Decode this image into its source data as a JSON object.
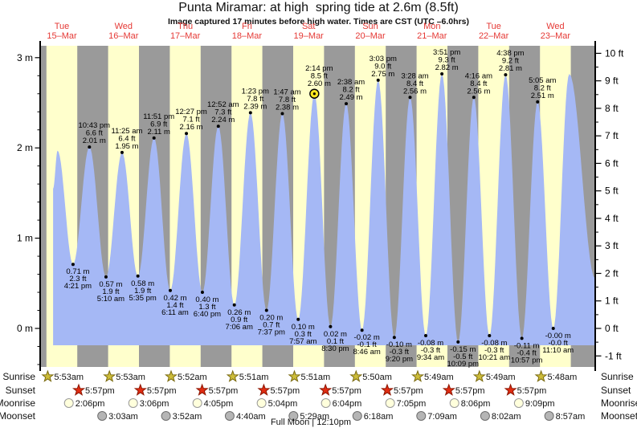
{
  "title": "Punta Miramar: at high  spring tide at 2.6m (8.5ft)",
  "subtitle": "Image captured 17 minutes before high water. Times are CST (UTC –6.0hrs)",
  "colors": {
    "day_band": "#ffffcc",
    "night_band": "#9a9a9a",
    "tide_fill": "#a5b8f5",
    "date_label": "#e53935",
    "axis_text": "#111111",
    "event_text": "#000000",
    "marker_fill": "#ffe920",
    "sunrise_fill": "#cdbd3a",
    "sunrise_stroke": "#7a6a10",
    "sunset_fill": "#e22c12",
    "sunset_stroke": "#8c1500",
    "moonrise_fill": "#ffffdc",
    "moonrise_stroke": "#9a9a9a",
    "moonset_fill": "#b5b5b5",
    "moonset_stroke": "#6e6e6e"
  },
  "chart_data": {
    "type": "area",
    "title": "Punta Miramar: at high  spring tide at 2.6m (8.5ft)",
    "subtitle": "Image captured 17 minutes before high water. Times are CST (UTC –6.0hrs)",
    "y_axis_left": {
      "unit": "m",
      "major_ticks": [
        0,
        1,
        2,
        3
      ],
      "minor_step": 0.2,
      "range_m": [
        -0.45,
        3.15
      ]
    },
    "y_axis_right": {
      "unit": "ft",
      "major_ticks": [
        -1,
        0,
        1,
        2,
        3,
        4,
        5,
        6,
        7,
        8,
        9,
        10
      ],
      "minor_step": 0.5
    },
    "days": [
      {
        "weekday": "Tue",
        "date": "15–Mar"
      },
      {
        "weekday": "Wed",
        "date": "16–Mar"
      },
      {
        "weekday": "Thu",
        "date": "17–Mar"
      },
      {
        "weekday": "Fri",
        "date": "18–Mar"
      },
      {
        "weekday": "Sat",
        "date": "19–Mar"
      },
      {
        "weekday": "Sun",
        "date": "20–Mar"
      },
      {
        "weekday": "Mon",
        "date": "21–Mar"
      },
      {
        "weekday": "Tue",
        "date": "22–Mar"
      },
      {
        "weekday": "Wed",
        "date": "23–Mar"
      }
    ],
    "tide_events": [
      {
        "kind": "low",
        "day": 0,
        "hour": 16.35,
        "time": "4:21 pm",
        "m": 0.71,
        "ft": 2.3,
        "m_label": "0.71 m",
        "ft_label": "2.3 ft"
      },
      {
        "kind": "high",
        "day": 0,
        "hour": 22.72,
        "time": "10:43 pm",
        "m": 2.01,
        "ft": 6.6,
        "m_label": "2.01 m",
        "ft_label": "6.6 ft"
      },
      {
        "kind": "low",
        "day": 1,
        "hour": 5.17,
        "time": "5:10 am",
        "m": 0.57,
        "ft": 1.9,
        "m_label": "0.57 m",
        "ft_label": "1.9 ft"
      },
      {
        "kind": "high",
        "day": 1,
        "hour": 11.42,
        "time": "11:25 am",
        "m": 1.95,
        "ft": 6.4,
        "m_label": "1.95 m",
        "ft_label": "6.4 ft"
      },
      {
        "kind": "low",
        "day": 1,
        "hour": 17.58,
        "time": "5:35 pm",
        "m": 0.58,
        "ft": 1.9,
        "m_label": "0.58 m",
        "ft_label": "1.9 ft"
      },
      {
        "kind": "high",
        "day": 1,
        "hour": 23.85,
        "time": "11:51 pm",
        "m": 2.11,
        "ft": 6.9,
        "m_label": "2.11 m",
        "ft_label": "6.9 ft"
      },
      {
        "kind": "low",
        "day": 2,
        "hour": 6.18,
        "time": "6:11 am",
        "m": 0.42,
        "ft": 1.4,
        "m_label": "0.42 m",
        "ft_label": "1.4 ft"
      },
      {
        "kind": "high",
        "day": 2,
        "hour": 12.45,
        "time": "12:27 pm",
        "m": 2.16,
        "ft": 7.1,
        "m_label": "2.16 m",
        "ft_label": "7.1 ft"
      },
      {
        "kind": "low",
        "day": 2,
        "hour": 18.67,
        "time": "6:40 pm",
        "m": 0.4,
        "ft": 1.3,
        "m_label": "0.40 m",
        "ft_label": "1.3 ft"
      },
      {
        "kind": "high",
        "day": 3,
        "hour": 0.87,
        "time": "12:52 am",
        "m": 2.24,
        "ft": 7.3,
        "m_label": "2.24 m",
        "ft_label": "7.3 ft"
      },
      {
        "kind": "low",
        "day": 3,
        "hour": 7.1,
        "time": "7:06 am",
        "m": 0.26,
        "ft": 0.9,
        "m_label": "0.26 m",
        "ft_label": "0.9 ft"
      },
      {
        "kind": "high",
        "day": 3,
        "hour": 13.38,
        "time": "1:23 pm",
        "m": 2.39,
        "ft": 7.8,
        "m_label": "2.39 m",
        "ft_label": "7.8 ft"
      },
      {
        "kind": "low",
        "day": 3,
        "hour": 19.62,
        "time": "7:37 pm",
        "m": 0.2,
        "ft": 0.7,
        "m_label": "0.20 m",
        "ft_label": "0.7 ft"
      },
      {
        "kind": "high",
        "day": 4,
        "hour": 1.78,
        "time": "1:47 am",
        "m": 2.38,
        "ft": 7.8,
        "m_label": "2.38 m",
        "ft_label": "7.8 ft"
      },
      {
        "kind": "low",
        "day": 4,
        "hour": 7.95,
        "time": "7:57 am",
        "m": 0.1,
        "ft": 0.3,
        "m_label": "0.10 m",
        "ft_label": "0.3 ft"
      },
      {
        "kind": "high",
        "day": 4,
        "hour": 14.23,
        "time": "2:14 pm",
        "m": 2.6,
        "ft": 8.5,
        "m_label": "2.60 m",
        "ft_label": "8.5 ft",
        "marker": true
      },
      {
        "kind": "low",
        "day": 4,
        "hour": 20.5,
        "time": "8:30 pm",
        "m": 0.02,
        "ft": 0.1,
        "m_label": "0.02 m",
        "ft_label": "0.1 ft"
      },
      {
        "kind": "high",
        "day": 5,
        "hour": 2.63,
        "time": "2:38 am",
        "m": 2.49,
        "ft": 8.2,
        "m_label": "2.49 m",
        "ft_label": "8.2 ft"
      },
      {
        "kind": "low",
        "day": 5,
        "hour": 8.77,
        "time": "8:46 am",
        "m": -0.02,
        "ft": -0.1,
        "m_label": "-0.02 m",
        "ft_label": "-0.1 ft"
      },
      {
        "kind": "high",
        "day": 5,
        "hour": 15.05,
        "time": "3:03 pm",
        "m": 2.75,
        "ft": 9.0,
        "m_label": "2.75 m",
        "ft_label": "9.0 ft"
      },
      {
        "kind": "low",
        "day": 5,
        "hour": 21.33,
        "time": "9:20 pm",
        "m": -0.1,
        "ft": -0.3,
        "m_label": "-0.10 m",
        "ft_label": "-0.3 ft"
      },
      {
        "kind": "high",
        "day": 6,
        "hour": 3.47,
        "time": "3:28 am",
        "m": 2.56,
        "ft": 8.4,
        "m_label": "2.56 m",
        "ft_label": "8.4 ft"
      },
      {
        "kind": "low",
        "day": 6,
        "hour": 9.57,
        "time": "9:34 am",
        "m": -0.08,
        "ft": -0.3,
        "m_label": "-0.08 m",
        "ft_label": "-0.3 ft"
      },
      {
        "kind": "high",
        "day": 6,
        "hour": 15.85,
        "time": "3:51 pm",
        "m": 2.82,
        "ft": 9.3,
        "m_label": "2.82 m",
        "ft_label": "9.3 ft"
      },
      {
        "kind": "low",
        "day": 6,
        "hour": 22.15,
        "time": "10:09 pm",
        "m": -0.15,
        "ft": -0.5,
        "m_label": "-0.15 m",
        "ft_label": "-0.5 ft"
      },
      {
        "kind": "high",
        "day": 7,
        "hour": 4.27,
        "time": "4:16 am",
        "m": 2.56,
        "ft": 8.4,
        "m_label": "2.56 m",
        "ft_label": "8.4 ft"
      },
      {
        "kind": "low",
        "day": 7,
        "hour": 10.35,
        "time": "10:21 am",
        "m": -0.08,
        "ft": -0.3,
        "m_label": "-0.08 m",
        "ft_label": "-0.3 ft"
      },
      {
        "kind": "high",
        "day": 7,
        "hour": 16.63,
        "time": "4:38 pm",
        "m": 2.81,
        "ft": 9.2,
        "m_label": "2.81 m",
        "ft_label": "9.2 ft"
      },
      {
        "kind": "low",
        "day": 7,
        "hour": 22.95,
        "time": "10:57 pm",
        "m": -0.11,
        "ft": -0.4,
        "m_label": "-0.11 m",
        "ft_label": "-0.4 ft"
      },
      {
        "kind": "high",
        "day": 8,
        "hour": 5.08,
        "time": "5:05 am",
        "m": 2.51,
        "ft": 8.2,
        "m_label": "2.51 m",
        "ft_label": "8.2 ft"
      },
      {
        "kind": "low",
        "day": 8,
        "hour": 11.17,
        "time": "11:10 am",
        "m": -0.0,
        "ft": -0.0,
        "m_label": "-0.00 m",
        "ft_label": "-0.0 ft"
      }
    ],
    "edge_points_before": [
      {
        "day": 0,
        "hour": 8.6,
        "m": 1.55
      },
      {
        "day": 0,
        "hour": 10.33,
        "m": 1.97
      }
    ],
    "edge_points_after": [
      {
        "day": 8,
        "hour": 17.4,
        "m": 2.82
      },
      {
        "day": 8,
        "hour": 27.5,
        "m": 0.55
      }
    ],
    "current_marker": {
      "at_time": "2:14 pm",
      "note": "high water"
    }
  },
  "astro": {
    "rows": [
      {
        "id": "sunrise",
        "label": "Sunrise",
        "icon": "sunrise-star",
        "events": [
          {
            "day": 0,
            "hour": 5.88,
            "time": "5:53am"
          },
          {
            "day": 1,
            "hour": 5.88,
            "time": "5:53am"
          },
          {
            "day": 2,
            "hour": 5.87,
            "time": "5:52am"
          },
          {
            "day": 3,
            "hour": 5.85,
            "time": "5:51am"
          },
          {
            "day": 4,
            "hour": 5.85,
            "time": "5:51am"
          },
          {
            "day": 5,
            "hour": 5.83,
            "time": "5:50am"
          },
          {
            "day": 6,
            "hour": 5.82,
            "time": "5:49am"
          },
          {
            "day": 7,
            "hour": 5.82,
            "time": "5:49am"
          },
          {
            "day": 8,
            "hour": 5.8,
            "time": "5:48am"
          }
        ]
      },
      {
        "id": "sunset",
        "label": "Sunset",
        "icon": "sunset-star",
        "events": [
          {
            "day": 0,
            "hour": 17.95,
            "time": "5:57pm"
          },
          {
            "day": 1,
            "hour": 17.95,
            "time": "5:57pm"
          },
          {
            "day": 2,
            "hour": 17.95,
            "time": "5:57pm"
          },
          {
            "day": 3,
            "hour": 17.95,
            "time": "5:57pm"
          },
          {
            "day": 4,
            "hour": 17.95,
            "time": "5:57pm"
          },
          {
            "day": 5,
            "hour": 17.95,
            "time": "5:57pm"
          },
          {
            "day": 6,
            "hour": 17.95,
            "time": "5:57pm"
          },
          {
            "day": 7,
            "hour": 17.95,
            "time": "5:57pm"
          }
        ]
      },
      {
        "id": "moonrise",
        "label": "Moonrise",
        "icon": "moonrise-circle",
        "events": [
          {
            "day": 0,
            "hour": 14.1,
            "time": "2:06pm"
          },
          {
            "day": 1,
            "hour": 15.1,
            "time": "3:06pm"
          },
          {
            "day": 2,
            "hour": 16.08,
            "time": "4:05pm"
          },
          {
            "day": 3,
            "hour": 17.07,
            "time": "5:04pm"
          },
          {
            "day": 4,
            "hour": 18.07,
            "time": "6:04pm"
          },
          {
            "day": 5,
            "hour": 19.08,
            "time": "7:05pm"
          },
          {
            "day": 6,
            "hour": 20.1,
            "time": "8:06pm"
          },
          {
            "day": 7,
            "hour": 21.15,
            "time": "9:09pm"
          }
        ]
      },
      {
        "id": "moonset",
        "label": "Moonset",
        "icon": "moonset-circle",
        "events": [
          {
            "day": 1,
            "hour": 3.05,
            "time": "3:03am"
          },
          {
            "day": 2,
            "hour": 3.87,
            "time": "3:52am"
          },
          {
            "day": 3,
            "hour": 4.67,
            "time": "4:40am"
          },
          {
            "day": 4,
            "hour": 5.48,
            "time": "5:29am"
          },
          {
            "day": 5,
            "hour": 6.3,
            "time": "6:18am"
          },
          {
            "day": 6,
            "hour": 7.15,
            "time": "7:09am"
          },
          {
            "day": 7,
            "hour": 8.03,
            "time": "8:02am"
          },
          {
            "day": 8,
            "hour": 8.95,
            "time": "8:57am"
          }
        ]
      }
    ],
    "footer": "Full Moon | 12:10pm"
  }
}
